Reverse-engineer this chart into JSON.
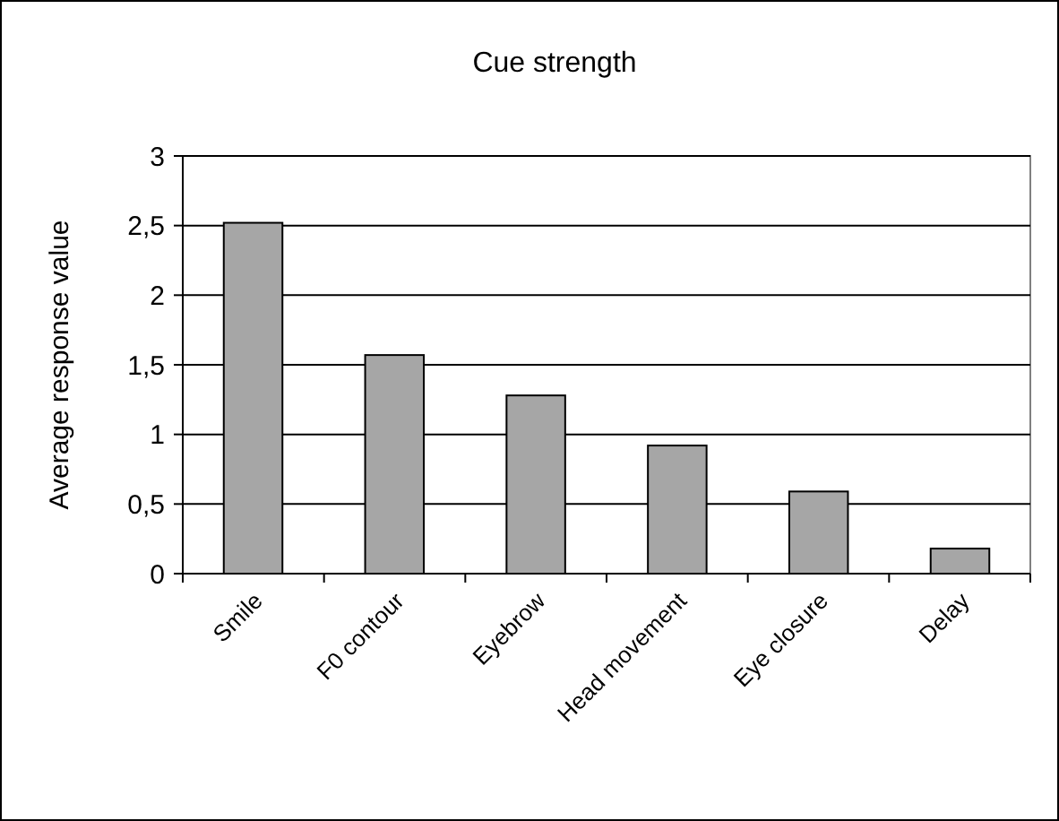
{
  "chart_data": {
    "type": "bar",
    "title": "Cue strength",
    "ylabel": "Average response value",
    "categories": [
      "Smile",
      "F0 contour",
      "Eyebrow",
      "Head movement",
      "Eye closure",
      "Delay"
    ],
    "values": [
      2.52,
      1.57,
      1.28,
      0.92,
      0.59,
      0.18
    ],
    "color": "#a6a6a6",
    "ylim": [
      0,
      3
    ],
    "yticks": [
      0,
      {
        "value": 0.5,
        "label": "0,5"
      },
      1,
      {
        "value": 1.5,
        "label": "1,5"
      },
      2,
      {
        "value": 2.5,
        "label": "2,5"
      },
      3
    ],
    "grid": "y"
  }
}
